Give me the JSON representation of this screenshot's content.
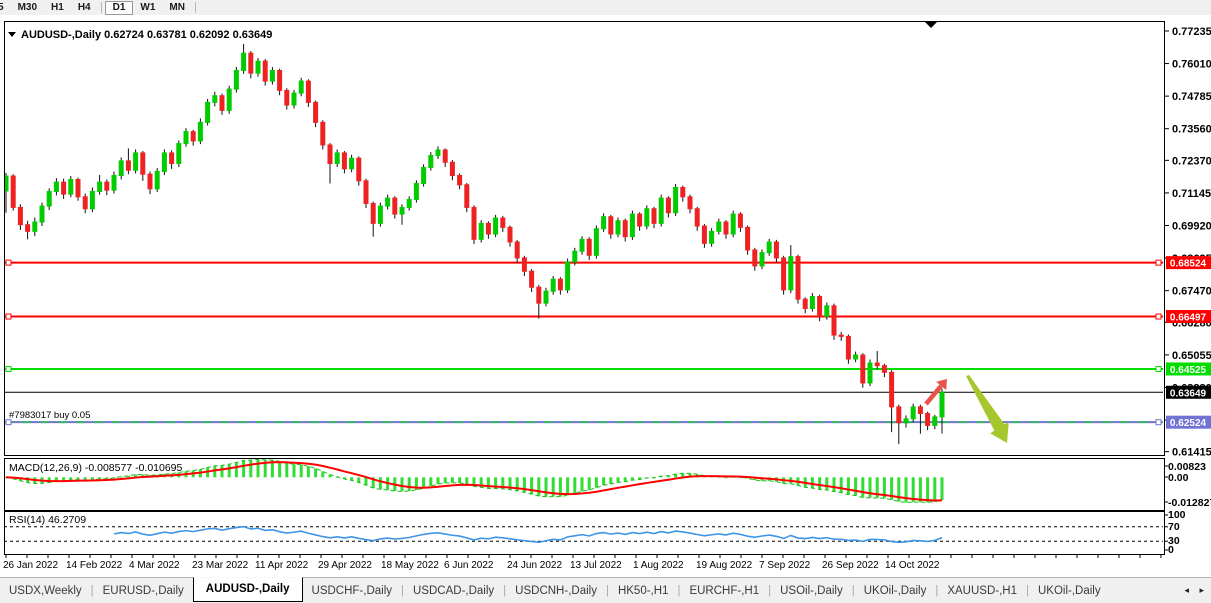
{
  "toolbar": {
    "timeframes": [
      "5",
      "M30",
      "H1",
      "H4",
      "D1",
      "W1",
      "MN"
    ],
    "active": "D1",
    "separators_after": [
      "H4",
      "MN"
    ]
  },
  "chart_title": {
    "symbol_label": "AUDUSD-,Daily",
    "ohlc": [
      "0.62724",
      "0.63781",
      "0.62092",
      "0.63649"
    ]
  },
  "order_line": {
    "label": "#7983017 buy 0.05",
    "price": 0.62524,
    "badge": "0.62524",
    "line_color": "#7173d4",
    "dash_color": "#3cb371"
  },
  "price_line": {
    "price": 0.63649,
    "badge": "0.63649",
    "color": "#000000",
    "badge_bg": "#000000"
  },
  "hlines": [
    {
      "name": "resistance-upper",
      "price": 0.68524,
      "badge": "0.68524",
      "color": "#ff0000"
    },
    {
      "name": "resistance-lower",
      "price": 0.66497,
      "badge": "0.66497",
      "color": "#ff0000"
    },
    {
      "name": "support-green",
      "price": 0.64525,
      "badge": "0.64525",
      "color": "#00dd00"
    }
  ],
  "arrows": [
    {
      "name": "bullish-arrow",
      "direction": "up-right",
      "color": "#e8534b"
    },
    {
      "name": "bearish-arrow",
      "direction": "down-right",
      "color": "#a6c62e"
    }
  ],
  "chart_data": {
    "type": "candlestick",
    "title": "AUDUSD-,Daily  0.62724 0.63781 0.62092 0.63649",
    "symbol": "AUDUSD",
    "timeframe": "Daily",
    "grid": false,
    "price_axis": {
      "min": 0.6129,
      "max": 0.7761,
      "ticks": [
        {
          "label": "0.77235",
          "value": 0.77235
        },
        {
          "label": "0.76010",
          "value": 0.7601
        },
        {
          "label": "0.74785",
          "value": 0.74785
        },
        {
          "label": "0.73560",
          "value": 0.7356
        },
        {
          "label": "0.72370",
          "value": 0.7237
        },
        {
          "label": "0.71145",
          "value": 0.71145
        },
        {
          "label": "0.69920",
          "value": 0.6992
        },
        {
          "label": "0.68695",
          "value": 0.68695
        },
        {
          "label": "0.67470",
          "value": 0.6747
        },
        {
          "label": "0.66280",
          "value": 0.6628
        },
        {
          "label": "0.65055",
          "value": 0.65055
        },
        {
          "label": "0.63830",
          "value": 0.6383
        },
        {
          "label": "0.62605",
          "value": 0.62605
        },
        {
          "label": "0.61415",
          "value": 0.61415
        }
      ]
    },
    "date_labels": [
      "26 Jan 2022",
      "14 Feb 2022",
      "4 Mar 2022",
      "23 Mar 2022",
      "11 Apr 2022",
      "29 Apr 2022",
      "18 May 2022",
      "6 Jun 2022",
      "24 Jun 2022",
      "13 Jul 2022",
      "1 Aug 2022",
      "19 Aug 2022",
      "7 Sep 2022",
      "26 Sep 2022",
      "14 Oct 2022"
    ],
    "colors": {
      "bull": "#00cc00",
      "bear": "#ee2222",
      "wick": "#111111",
      "macd_hist": "#33dd33",
      "macd_line": "#22bb22",
      "macd_signal": "#ff0000",
      "rsi": "#3e95e8"
    },
    "indicators": {
      "macd": {
        "label": "MACD(12,26,9) -0.008577 -0.010695",
        "params": [
          12,
          26,
          9
        ],
        "value_main": -0.008577,
        "value_signal": -0.010695,
        "axis_labels": [
          {
            "label": "0.00823",
            "value": 0.00823
          },
          {
            "label": "0.00",
            "value": 0.0
          },
          {
            "label": "-0.012827",
            "value": -0.012827
          }
        ]
      },
      "rsi": {
        "label": "RSI(14) 46.2709",
        "period": 14,
        "value": 46.2709,
        "levels": [
          70,
          30
        ],
        "axis_labels": [
          "100",
          "70",
          "30",
          "0"
        ],
        "range": [
          0,
          100
        ]
      }
    },
    "candles": [
      [
        0.7122,
        0.719,
        0.704,
        0.7178
      ],
      [
        0.7178,
        0.7185,
        0.7048,
        0.706
      ],
      [
        0.706,
        0.7072,
        0.6975,
        0.6995
      ],
      [
        0.6995,
        0.701,
        0.694,
        0.697
      ],
      [
        0.697,
        0.7022,
        0.6952,
        0.7005
      ],
      [
        0.7005,
        0.7078,
        0.699,
        0.7065
      ],
      [
        0.7065,
        0.7132,
        0.705,
        0.712
      ],
      [
        0.712,
        0.717,
        0.7105,
        0.7155
      ],
      [
        0.7155,
        0.7168,
        0.7092,
        0.711
      ],
      [
        0.711,
        0.7178,
        0.7098,
        0.7165
      ],
      [
        0.7165,
        0.7172,
        0.7085,
        0.71
      ],
      [
        0.71,
        0.7112,
        0.7038,
        0.7055
      ],
      [
        0.7055,
        0.7135,
        0.7042,
        0.712
      ],
      [
        0.712,
        0.7182,
        0.7108,
        0.7155
      ],
      [
        0.7155,
        0.7165,
        0.7106,
        0.7125
      ],
      [
        0.7125,
        0.7195,
        0.7112,
        0.718
      ],
      [
        0.718,
        0.7248,
        0.7165,
        0.7235
      ],
      [
        0.7235,
        0.7282,
        0.7185,
        0.72
      ],
      [
        0.72,
        0.7278,
        0.7188,
        0.7265
      ],
      [
        0.7265,
        0.7272,
        0.716,
        0.7185
      ],
      [
        0.7185,
        0.7195,
        0.711,
        0.713
      ],
      [
        0.713,
        0.7208,
        0.7118,
        0.7195
      ],
      [
        0.7195,
        0.7278,
        0.7182,
        0.7265
      ],
      [
        0.7265,
        0.7275,
        0.7205,
        0.7225
      ],
      [
        0.7225,
        0.7312,
        0.7212,
        0.73
      ],
      [
        0.73,
        0.7358,
        0.7288,
        0.7345
      ],
      [
        0.7345,
        0.7352,
        0.7292,
        0.731
      ],
      [
        0.731,
        0.7395,
        0.7298,
        0.738
      ],
      [
        0.738,
        0.7468,
        0.7368,
        0.7455
      ],
      [
        0.7455,
        0.7495,
        0.744,
        0.748
      ],
      [
        0.748,
        0.7488,
        0.7408,
        0.7425
      ],
      [
        0.7425,
        0.7518,
        0.7412,
        0.7505
      ],
      [
        0.7505,
        0.7588,
        0.7492,
        0.7575
      ],
      [
        0.7575,
        0.7675,
        0.7562,
        0.764
      ],
      [
        0.764,
        0.7648,
        0.7545,
        0.7565
      ],
      [
        0.7565,
        0.7622,
        0.7552,
        0.761
      ],
      [
        0.761,
        0.7618,
        0.7518,
        0.7535
      ],
      [
        0.7535,
        0.7588,
        0.7522,
        0.7575
      ],
      [
        0.7575,
        0.7582,
        0.7482,
        0.75
      ],
      [
        0.75,
        0.7508,
        0.7428,
        0.7445
      ],
      [
        0.7445,
        0.7502,
        0.7432,
        0.749
      ],
      [
        0.749,
        0.7548,
        0.7478,
        0.7535
      ],
      [
        0.7535,
        0.7542,
        0.7438,
        0.7455
      ],
      [
        0.7455,
        0.7462,
        0.7362,
        0.738
      ],
      [
        0.738,
        0.7388,
        0.7278,
        0.7295
      ],
      [
        0.7295,
        0.7302,
        0.715,
        0.7225
      ],
      [
        0.7225,
        0.7278,
        0.7212,
        0.7265
      ],
      [
        0.7265,
        0.7272,
        0.7188,
        0.7205
      ],
      [
        0.7205,
        0.7258,
        0.7192,
        0.7245
      ],
      [
        0.7245,
        0.7252,
        0.7142,
        0.716
      ],
      [
        0.716,
        0.7168,
        0.7058,
        0.7075
      ],
      [
        0.7075,
        0.7082,
        0.695,
        0.7
      ],
      [
        0.7,
        0.7078,
        0.6988,
        0.7065
      ],
      [
        0.7065,
        0.7108,
        0.7052,
        0.7095
      ],
      [
        0.7095,
        0.7102,
        0.7018,
        0.7035
      ],
      [
        0.7035,
        0.7072,
        0.6995,
        0.706
      ],
      [
        0.706,
        0.7102,
        0.7048,
        0.709
      ],
      [
        0.709,
        0.7162,
        0.7078,
        0.715
      ],
      [
        0.715,
        0.7222,
        0.7138,
        0.721
      ],
      [
        0.721,
        0.7268,
        0.7198,
        0.7255
      ],
      [
        0.7255,
        0.729,
        0.7242,
        0.7276
      ],
      [
        0.7276,
        0.7282,
        0.7212,
        0.723
      ],
      [
        0.723,
        0.7238,
        0.7162,
        0.718
      ],
      [
        0.718,
        0.7188,
        0.7128,
        0.7145
      ],
      [
        0.7145,
        0.7152,
        0.7042,
        0.706
      ],
      [
        0.706,
        0.7068,
        0.6922,
        0.694
      ],
      [
        0.694,
        0.7012,
        0.6928,
        0.7
      ],
      [
        0.7,
        0.7008,
        0.6942,
        0.696
      ],
      [
        0.696,
        0.7032,
        0.6948,
        0.702
      ],
      [
        0.702,
        0.7028,
        0.6968,
        0.6985
      ],
      [
        0.6985,
        0.6992,
        0.6912,
        0.693
      ],
      [
        0.693,
        0.6938,
        0.6852,
        0.687
      ],
      [
        0.687,
        0.6878,
        0.6802,
        0.682
      ],
      [
        0.682,
        0.6828,
        0.6742,
        0.676
      ],
      [
        0.676,
        0.6768,
        0.6642,
        0.67
      ],
      [
        0.67,
        0.6758,
        0.6688,
        0.6745
      ],
      [
        0.6745,
        0.6802,
        0.6732,
        0.679
      ],
      [
        0.679,
        0.6798,
        0.6732,
        0.675
      ],
      [
        0.675,
        0.6868,
        0.6738,
        0.6855
      ],
      [
        0.6855,
        0.6908,
        0.6842,
        0.6895
      ],
      [
        0.6895,
        0.6952,
        0.6882,
        0.694
      ],
      [
        0.694,
        0.6948,
        0.6862,
        0.688
      ],
      [
        0.688,
        0.6992,
        0.6868,
        0.698
      ],
      [
        0.698,
        0.7038,
        0.6968,
        0.7025
      ],
      [
        0.7025,
        0.7032,
        0.6942,
        0.696
      ],
      [
        0.696,
        0.7022,
        0.6948,
        0.701
      ],
      [
        0.701,
        0.7018,
        0.6932,
        0.695
      ],
      [
        0.695,
        0.7048,
        0.6938,
        0.7035
      ],
      [
        0.7035,
        0.7042,
        0.6972,
        0.699
      ],
      [
        0.699,
        0.7068,
        0.6978,
        0.7055
      ],
      [
        0.7055,
        0.7062,
        0.6982,
        0.7
      ],
      [
        0.7,
        0.7108,
        0.6988,
        0.7095
      ],
      [
        0.7095,
        0.7102,
        0.7022,
        0.704
      ],
      [
        0.704,
        0.7148,
        0.7028,
        0.7135
      ],
      [
        0.7135,
        0.7142,
        0.7082,
        0.71
      ],
      [
        0.71,
        0.7108,
        0.7038,
        0.7055
      ],
      [
        0.7055,
        0.7062,
        0.6972,
        0.699
      ],
      [
        0.699,
        0.6998,
        0.6908,
        0.6925
      ],
      [
        0.6925,
        0.6982,
        0.6912,
        0.697
      ],
      [
        0.697,
        0.7018,
        0.6958,
        0.7005
      ],
      [
        0.7005,
        0.7012,
        0.6942,
        0.696
      ],
      [
        0.696,
        0.7048,
        0.6948,
        0.7035
      ],
      [
        0.7035,
        0.7042,
        0.6968,
        0.6985
      ],
      [
        0.6985,
        0.6992,
        0.6882,
        0.69
      ],
      [
        0.69,
        0.6908,
        0.6822,
        0.684
      ],
      [
        0.684,
        0.6902,
        0.6828,
        0.689
      ],
      [
        0.689,
        0.6942,
        0.6878,
        0.693
      ],
      [
        0.693,
        0.6938,
        0.6852,
        0.687
      ],
      [
        0.687,
        0.6878,
        0.6732,
        0.675
      ],
      [
        0.675,
        0.6918,
        0.6738,
        0.6875
      ],
      [
        0.6875,
        0.6882,
        0.6698,
        0.6715
      ],
      [
        0.6715,
        0.6722,
        0.6662,
        0.668
      ],
      [
        0.668,
        0.6738,
        0.6668,
        0.6725
      ],
      [
        0.6725,
        0.6732,
        0.6632,
        0.665
      ],
      [
        0.665,
        0.6702,
        0.6638,
        0.669
      ],
      [
        0.669,
        0.6698,
        0.6562,
        0.658
      ],
      [
        0.658,
        0.6592,
        0.6558,
        0.6575
      ],
      [
        0.6575,
        0.6582,
        0.6472,
        0.649
      ],
      [
        0.649,
        0.6518,
        0.6478,
        0.6505
      ],
      [
        0.6505,
        0.6512,
        0.6382,
        0.64
      ],
      [
        0.64,
        0.6488,
        0.6388,
        0.6475
      ],
      [
        0.6475,
        0.652,
        0.6452,
        0.6465
      ],
      [
        0.6465,
        0.6472,
        0.6422,
        0.644
      ],
      [
        0.644,
        0.6448,
        0.6215,
        0.631
      ],
      [
        0.631,
        0.6318,
        0.617,
        0.625
      ],
      [
        0.625,
        0.6278,
        0.6232,
        0.6265
      ],
      [
        0.6265,
        0.6322,
        0.6252,
        0.631
      ],
      [
        0.631,
        0.6318,
        0.6209,
        0.6285
      ],
      [
        0.6285,
        0.6292,
        0.6222,
        0.624
      ],
      [
        0.624,
        0.628,
        0.6226,
        0.62724
      ],
      [
        0.62724,
        0.63781,
        0.62092,
        0.63649
      ]
    ]
  },
  "tabs": {
    "items": [
      {
        "label": "USDX,Weekly"
      },
      {
        "label": "EURUSD-,Daily"
      },
      {
        "label": "AUDUSD-,Daily",
        "active": true
      },
      {
        "label": "USDCHF-,Daily"
      },
      {
        "label": "USDCAD-,Daily"
      },
      {
        "label": "USDCNH-,Daily"
      },
      {
        "label": "HK50-,H1"
      },
      {
        "label": "EURCHF-,H1"
      },
      {
        "label": "USOil-,Daily"
      },
      {
        "label": "UKOil-,Daily"
      },
      {
        "label": "XAUUSD-,H1"
      },
      {
        "label": "UKOil-,Daily"
      }
    ],
    "nav_left": "◂",
    "nav_right": "▸"
  }
}
